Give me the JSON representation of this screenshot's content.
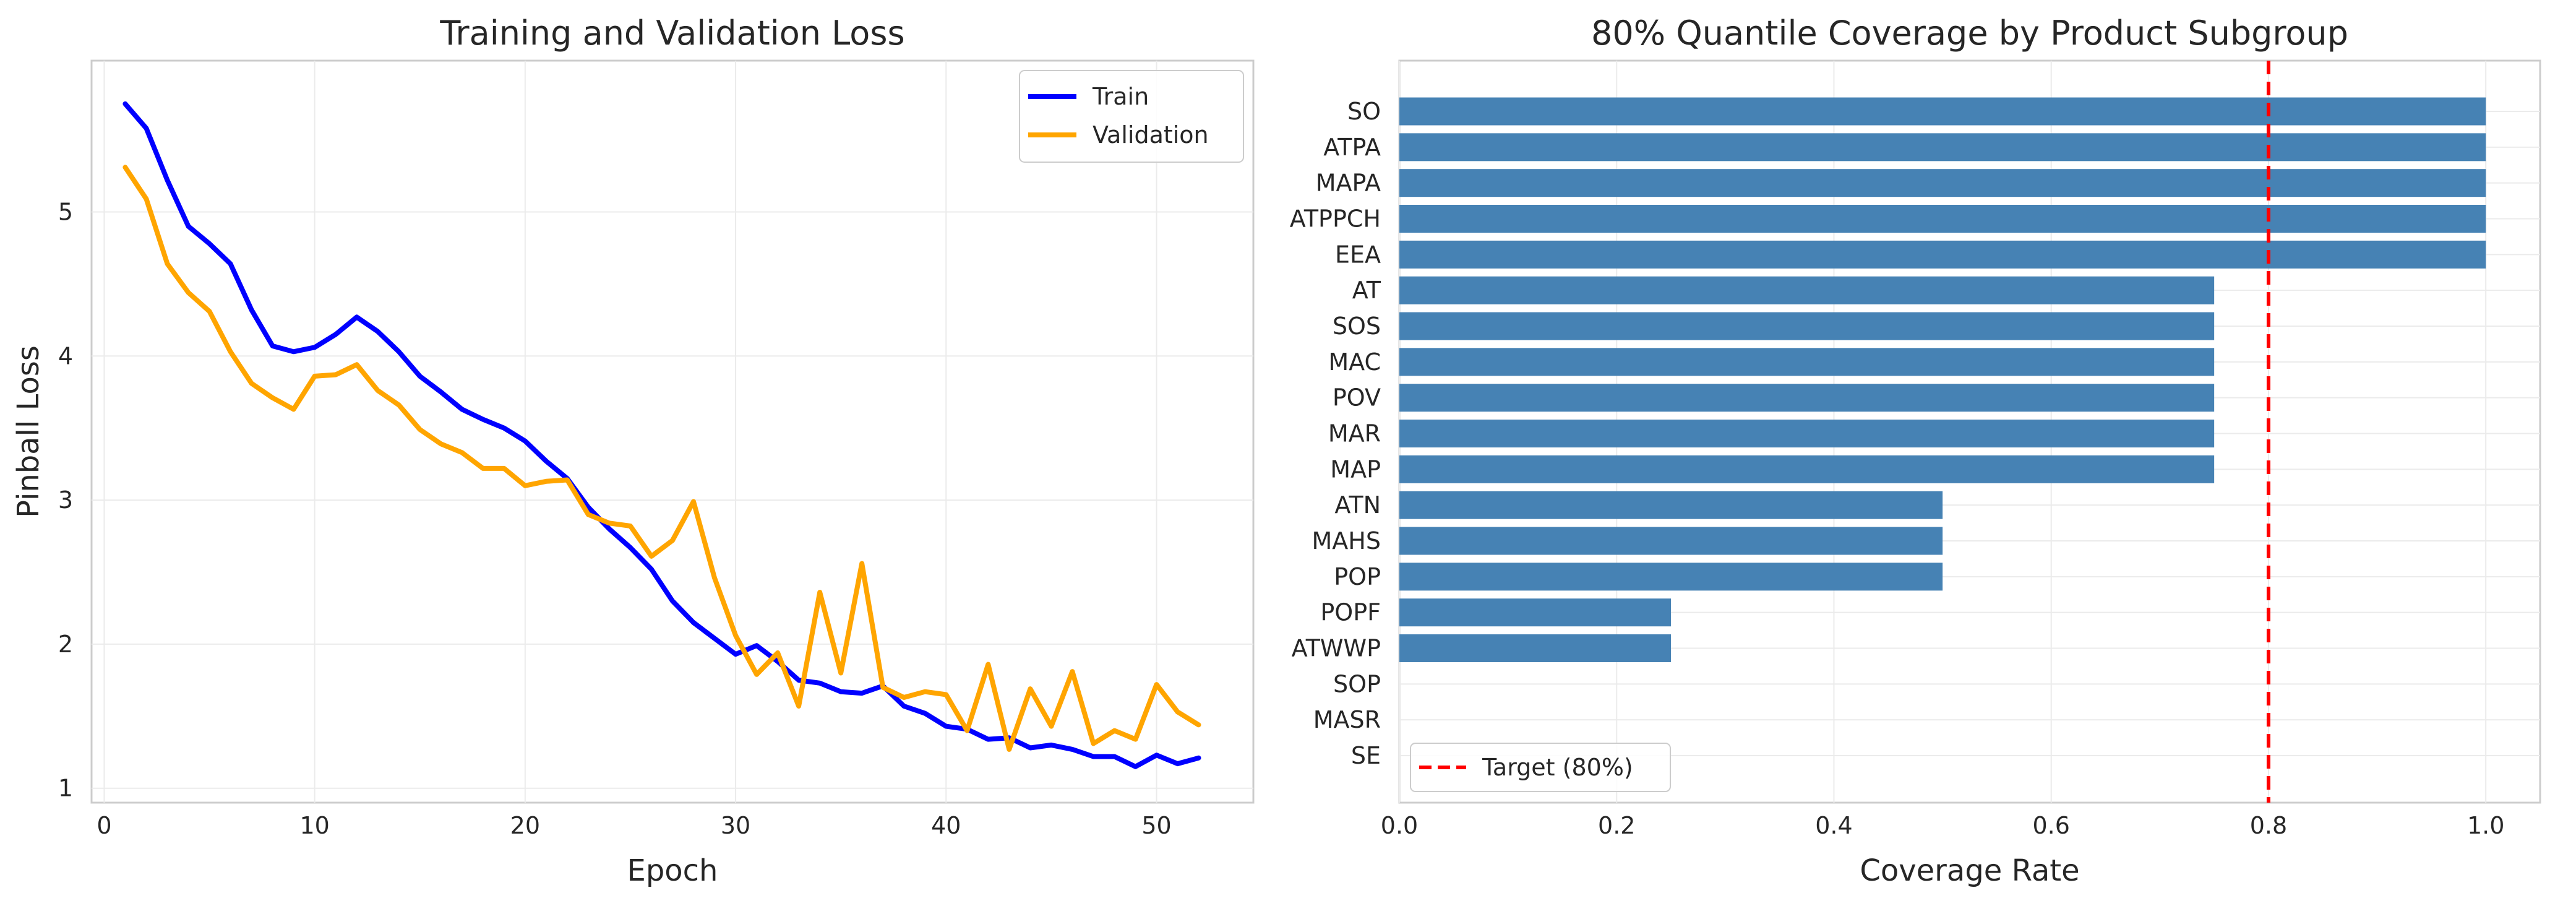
{
  "chart_data": [
    {
      "type": "line",
      "title": "Training and Validation Loss",
      "xlabel": "Epoch",
      "ylabel": "Pinball Loss",
      "xlim": [
        -0.6,
        54.6
      ],
      "ylim": [
        0.9,
        6.05
      ],
      "xticks": [
        "0",
        "10",
        "20",
        "30",
        "40",
        "50"
      ],
      "yticks": [
        "1",
        "2",
        "3",
        "4",
        "5"
      ],
      "grid": true,
      "legend": "top-right",
      "x": [
        1,
        2,
        3,
        4,
        5,
        6,
        7,
        8,
        9,
        10,
        11,
        12,
        13,
        14,
        15,
        16,
        17,
        18,
        19,
        20,
        21,
        22,
        23,
        24,
        25,
        26,
        27,
        28,
        29,
        30,
        31,
        32,
        33,
        34,
        35,
        36,
        37,
        38,
        39,
        40,
        41,
        42,
        43,
        44,
        45,
        46,
        47,
        48,
        49,
        50,
        51,
        52
      ],
      "series": [
        {
          "name": "Train",
          "color": "#0000ff",
          "values": [
            5.75,
            5.58,
            5.22,
            4.9,
            4.78,
            4.64,
            4.32,
            4.07,
            4.03,
            4.06,
            4.15,
            4.27,
            4.17,
            4.03,
            3.86,
            3.75,
            3.63,
            3.56,
            3.5,
            3.41,
            3.27,
            3.15,
            2.95,
            2.8,
            2.67,
            2.52,
            2.3,
            2.15,
            2.04,
            1.93,
            1.99,
            1.88,
            1.75,
            1.73,
            1.67,
            1.66,
            1.71,
            1.57,
            1.52,
            1.43,
            1.41,
            1.34,
            1.35,
            1.28,
            1.3,
            1.27,
            1.22,
            1.22,
            1.15,
            1.23,
            1.17,
            1.21
          ]
        },
        {
          "name": "Validation",
          "color": "#ffa500",
          "values": [
            5.31,
            5.09,
            4.64,
            4.44,
            4.31,
            4.03,
            3.81,
            3.71,
            3.63,
            3.86,
            3.87,
            3.94,
            3.76,
            3.66,
            3.49,
            3.39,
            3.33,
            3.22,
            3.22,
            3.1,
            3.13,
            3.14,
            2.9,
            2.84,
            2.82,
            2.61,
            2.72,
            2.99,
            2.46,
            2.06,
            1.79,
            1.94,
            1.57,
            2.36,
            1.8,
            2.56,
            1.7,
            1.63,
            1.67,
            1.65,
            1.4,
            1.86,
            1.27,
            1.69,
            1.43,
            1.81,
            1.31,
            1.4,
            1.34,
            1.72,
            1.53,
            1.44
          ]
        }
      ]
    },
    {
      "type": "bar",
      "orientation": "horizontal",
      "title": "80% Quantile Coverage by Product Subgroup",
      "xlabel": "Coverage Rate",
      "ylabel": "",
      "xlim": [
        0,
        1.05
      ],
      "xticks": [
        "0.0",
        "0.2",
        "0.4",
        "0.6",
        "0.8",
        "1.0"
      ],
      "grid": true,
      "legend": "bottom-left",
      "bar_color": "#4682b4",
      "categories": [
        "SO",
        "ATPA",
        "MAPA",
        "ATPPCH",
        "EEA",
        "AT",
        "SOS",
        "MAC",
        "POV",
        "MAR",
        "MAP",
        "ATN",
        "MAHS",
        "POP",
        "POPF",
        "ATWWP",
        "SOP",
        "MASR",
        "SE"
      ],
      "values": [
        1.0,
        1.0,
        1.0,
        1.0,
        1.0,
        0.75,
        0.75,
        0.75,
        0.75,
        0.75,
        0.75,
        0.5,
        0.5,
        0.5,
        0.25,
        0.25,
        0.0,
        0.0,
        0.0
      ],
      "target": {
        "value": 0.8,
        "label": "Target (80%)",
        "color": "#ff0000"
      }
    }
  ]
}
